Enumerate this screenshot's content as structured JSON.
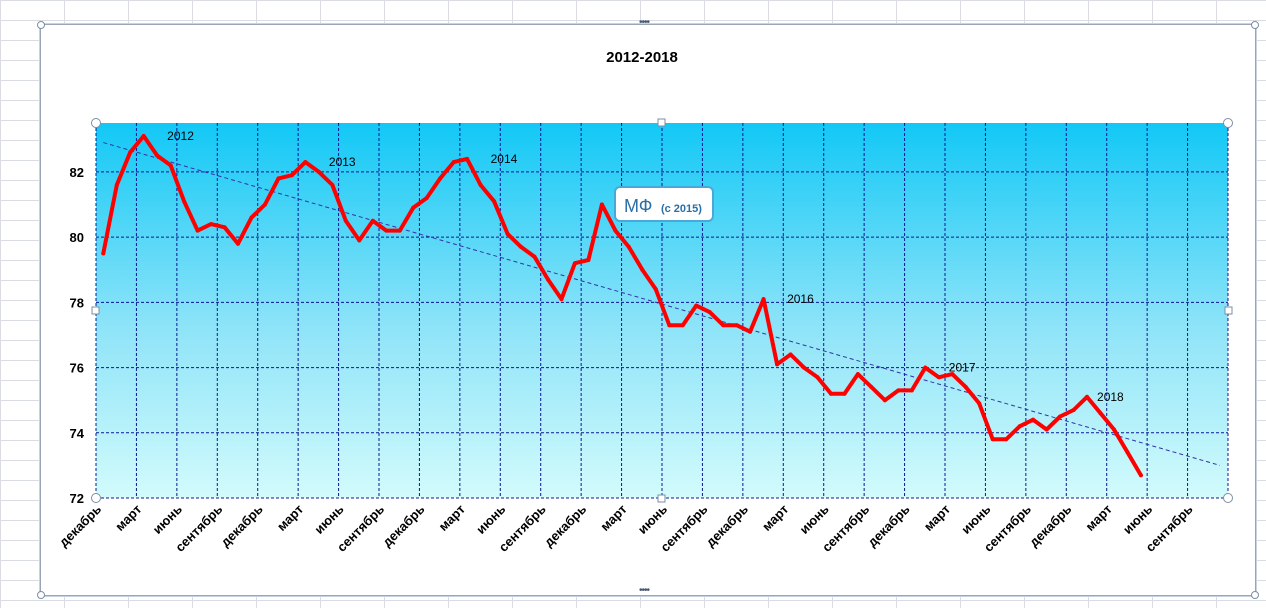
{
  "chart_data": {
    "type": "line",
    "title": "2012-2018",
    "xlabel": "",
    "ylabel": "",
    "ylim": [
      72,
      83.5
    ],
    "yticks": [
      72,
      74,
      76,
      78,
      80,
      82
    ],
    "grid": true,
    "x_tick_labels": [
      "декабрь",
      "март",
      "июнь",
      "сентябрь",
      "декабрь",
      "март",
      "июнь",
      "сентябрь",
      "декабрь",
      "март",
      "июнь",
      "сентябрь",
      "декабрь",
      "март",
      "июнь",
      "сентябрь",
      "декабрь",
      "март",
      "июнь",
      "сентябрь",
      "декабрь",
      "март",
      "июнь",
      "сентябрь",
      "декабрь",
      "март",
      "июнь",
      "сентябрь"
    ],
    "series": [
      {
        "color": "#ff0000",
        "values": [
          79.5,
          81.6,
          82.6,
          83.1,
          82.5,
          82.2,
          81.1,
          80.2,
          80.4,
          80.3,
          79.8,
          80.6,
          81.0,
          81.8,
          81.9,
          82.3,
          82.0,
          81.6,
          80.5,
          79.9,
          80.5,
          80.2,
          80.2,
          80.9,
          81.2,
          81.8,
          82.3,
          82.4,
          81.6,
          81.1,
          80.1,
          79.7,
          79.4,
          78.7,
          78.1,
          79.2,
          79.3,
          81.0,
          80.2,
          79.7,
          79.0,
          78.4,
          77.3,
          77.3,
          77.9,
          77.7,
          77.3,
          77.3,
          77.1,
          78.1,
          76.1,
          76.4,
          76.0,
          75.7,
          75.2,
          75.2,
          75.8,
          75.4,
          75.0,
          75.3,
          75.3,
          76.0,
          75.7,
          75.8,
          75.4,
          74.9,
          73.8,
          73.8,
          74.2,
          74.4,
          74.1,
          74.5,
          74.7,
          75.1,
          74.6,
          74.1,
          73.4,
          72.7
        ]
      },
      {
        "name": "trend",
        "type": "linear-trend",
        "color": "#3333aa",
        "start": 82.9,
        "end": 73.0
      }
    ],
    "annotations": [
      {
        "text": "2012",
        "x": 4,
        "y": 83.1
      },
      {
        "text": "2013",
        "x": 16,
        "y": 82.3
      },
      {
        "text": "2014",
        "x": 28,
        "y": 82.4
      },
      {
        "text": "2016",
        "x": 50,
        "y": 78.1
      },
      {
        "text": "2017",
        "x": 62,
        "y": 76.0
      },
      {
        "text": "2018",
        "x": 73,
        "y": 75.1
      }
    ],
    "callout": {
      "main": "МФ",
      "sub": "(с 2015)"
    }
  }
}
